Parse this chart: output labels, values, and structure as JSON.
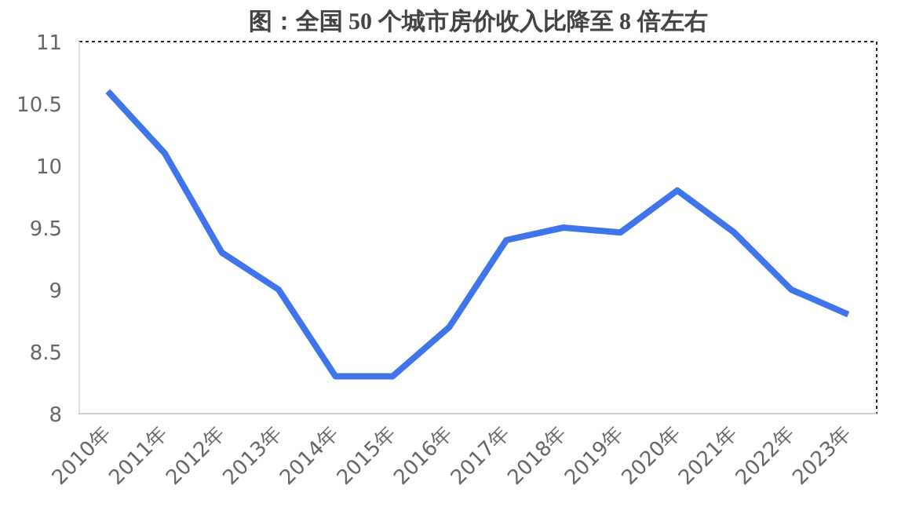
{
  "chart_data": {
    "type": "line",
    "title": "图：全国 50 个城市房价收入比降至 8 倍左右",
    "categories": [
      "2010年",
      "2011年",
      "2012年",
      "2013年",
      "2014年",
      "2015年",
      "2016年",
      "2017年",
      "2018年",
      "2019年",
      "2020年",
      "2021年",
      "2022年",
      "2023年"
    ],
    "series": [
      {
        "color": "#3f74ea",
        "values": [
          10.6,
          10.1,
          9.3,
          9.0,
          8.3,
          8.3,
          8.7,
          9.4,
          9.5,
          9.46,
          9.8,
          9.46,
          9.0,
          8.8
        ]
      }
    ],
    "ylim": [
      8,
      11
    ],
    "yticks": [
      8,
      8.5,
      9,
      9.5,
      10,
      10.5,
      11
    ],
    "grid": false,
    "marker": "none",
    "line_style": "solid"
  }
}
